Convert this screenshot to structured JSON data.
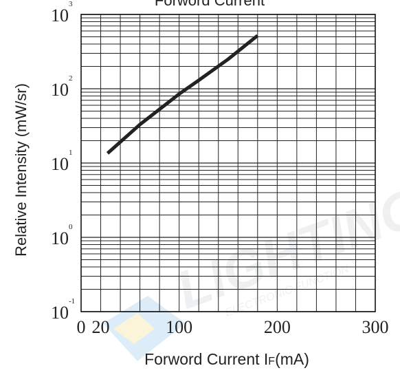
{
  "chart_data": {
    "type": "line",
    "title": "Forword Current",
    "xlabel": "Forword Current I",
    "xlabel_sub": "F",
    "xlabel_unit": "(mA)",
    "ylabel": "Relative Intensity (mW/sr)",
    "x_scale": "linear",
    "y_scale": "log",
    "xlim": [
      0,
      300
    ],
    "ylim": [
      0.1,
      1000
    ],
    "grid": true,
    "x_ticks": [
      {
        "value": 0,
        "label": "0"
      },
      {
        "value": 20,
        "label": "20"
      },
      {
        "value": 100,
        "label": "100"
      },
      {
        "value": 200,
        "label": "200"
      },
      {
        "value": 300,
        "label": "300"
      }
    ],
    "y_ticks": [
      {
        "value": 0.1,
        "base": "10",
        "exp": "-1"
      },
      {
        "value": 1,
        "base": "10",
        "exp": "0"
      },
      {
        "value": 10,
        "base": "10",
        "exp": "1"
      },
      {
        "value": 100,
        "base": "10",
        "exp": "2"
      },
      {
        "value": 1000,
        "base": "10",
        "exp": "3"
      }
    ],
    "series": [
      {
        "x": [
          27,
          60,
          100,
          120,
          150,
          180
        ],
        "y": [
          13.5,
          33,
          85,
          130,
          250,
          520
        ]
      }
    ],
    "line_color": "#222222"
  },
  "watermark": {
    "text": "LIGHTING",
    "subtext": "ELECTRONIC FUNCTION"
  }
}
